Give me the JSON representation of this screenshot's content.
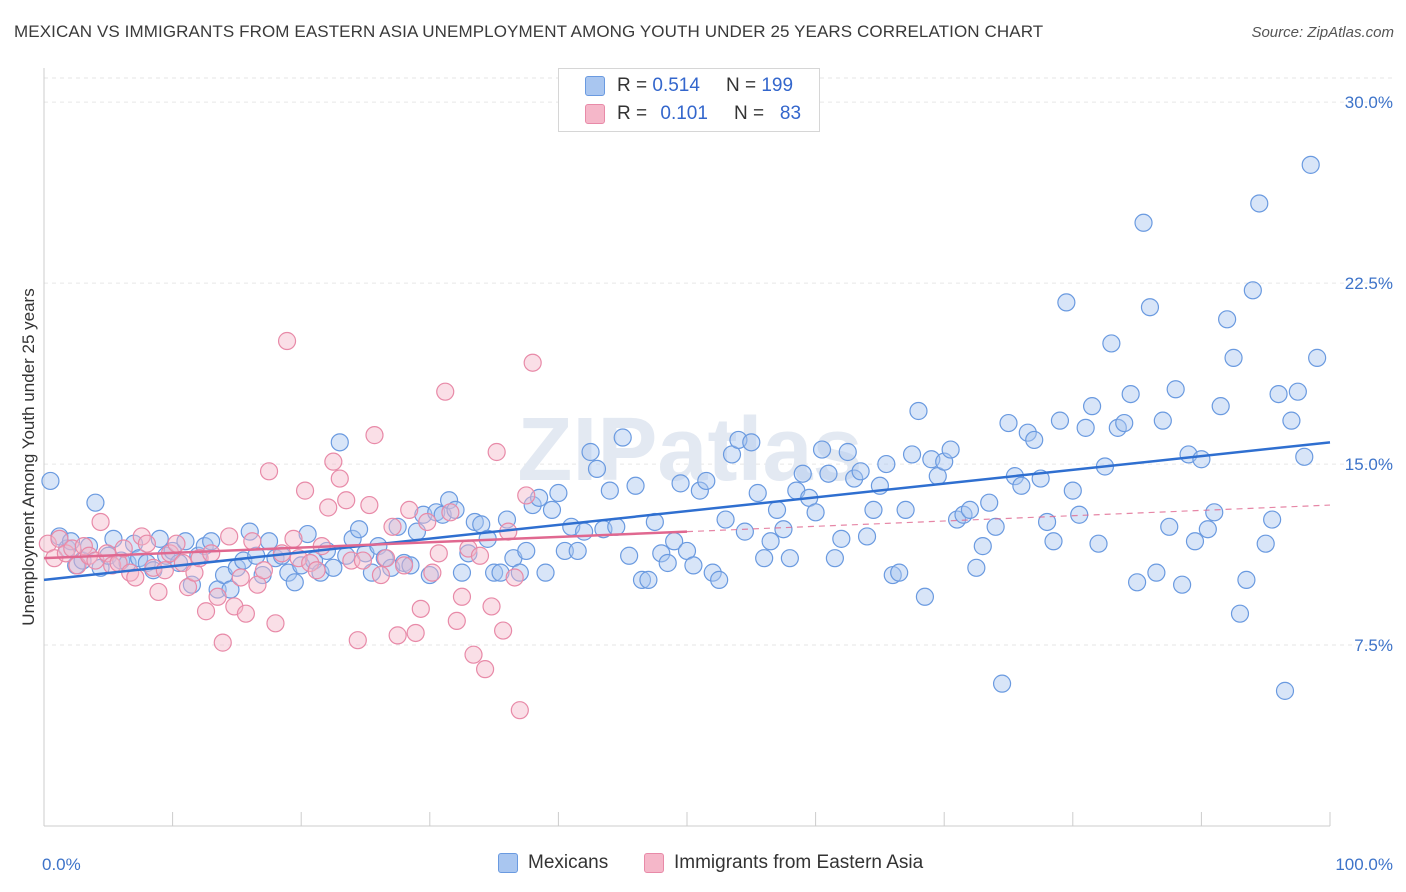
{
  "title": "MEXICAN VS IMMIGRANTS FROM EASTERN ASIA UNEMPLOYMENT AMONG YOUTH UNDER 25 YEARS CORRELATION CHART",
  "source": "Source: ZipAtlas.com",
  "watermark": "ZIPatlas",
  "legend_stats": [
    {
      "r_label": "R =",
      "r_value": "0.514",
      "n_label": "N =",
      "n_value": "199",
      "color": "#a9c6f0"
    },
    {
      "r_label": "R =",
      "r_value": "0.101",
      "n_label": "N =",
      "n_value": "83",
      "color": "#f5b7c9"
    }
  ],
  "chart_data": {
    "type": "scatter",
    "title": "MEXICAN VS IMMIGRANTS FROM EASTERN ASIA UNEMPLOYMENT AMONG YOUTH UNDER 25 YEARS CORRELATION CHART",
    "ylabel": "Unemployment Among Youth under 25 years",
    "xlim": [
      0,
      100
    ],
    "ylim": [
      0,
      31
    ],
    "x_tick_labels": [
      "0.0%",
      "100.0%"
    ],
    "y_ticks": [
      7.5,
      15.0,
      22.5,
      30.0
    ],
    "y_tick_labels": [
      "7.5%",
      "15.0%",
      "22.5%",
      "30.0%"
    ],
    "grid": true,
    "legend_position": "bottom",
    "series": [
      {
        "name": "Mexicans",
        "color": "#6a9ae0",
        "fill": "#a9c6f0",
        "trend": {
          "x": [
            0,
            100
          ],
          "y": [
            10.2,
            15.9
          ],
          "style": "solid",
          "color": "#2f6fd0"
        },
        "points": [
          [
            0.5,
            14.3
          ],
          [
            1.2,
            12.0
          ],
          [
            1.8,
            11.5
          ],
          [
            2.1,
            11.8
          ],
          [
            2.5,
            10.8
          ],
          [
            3.0,
            11.0
          ],
          [
            3.5,
            11.6
          ],
          [
            4.0,
            13.4
          ],
          [
            4.4,
            10.7
          ],
          [
            5.0,
            11.2
          ],
          [
            5.4,
            11.9
          ],
          [
            6.0,
            11.0
          ],
          [
            6.5,
            10.9
          ],
          [
            7.0,
            11.7
          ],
          [
            7.4,
            11.1
          ],
          [
            8.0,
            10.9
          ],
          [
            8.5,
            10.6
          ],
          [
            9.0,
            11.9
          ],
          [
            9.5,
            11.2
          ],
          [
            10.0,
            11.4
          ],
          [
            10.5,
            10.9
          ],
          [
            11.0,
            11.8
          ],
          [
            11.5,
            10.0
          ],
          [
            12.0,
            11.2
          ],
          [
            12.5,
            11.6
          ],
          [
            13.0,
            11.8
          ],
          [
            13.5,
            9.8
          ],
          [
            14.0,
            10.4
          ],
          [
            14.5,
            9.8
          ],
          [
            15.0,
            10.7
          ],
          [
            15.5,
            11.0
          ],
          [
            16.0,
            12.2
          ],
          [
            16.5,
            11.2
          ],
          [
            17.0,
            10.4
          ],
          [
            17.5,
            11.8
          ],
          [
            18.0,
            11.1
          ],
          [
            18.5,
            11.2
          ],
          [
            19.0,
            10.5
          ],
          [
            19.5,
            10.1
          ],
          [
            20.0,
            10.8
          ],
          [
            20.5,
            12.1
          ],
          [
            21.0,
            11.0
          ],
          [
            21.5,
            10.5
          ],
          [
            22.0,
            11.4
          ],
          [
            22.5,
            10.7
          ],
          [
            23.0,
            15.9
          ],
          [
            23.5,
            11.2
          ],
          [
            24.0,
            11.9
          ],
          [
            24.5,
            12.3
          ],
          [
            25.0,
            11.3
          ],
          [
            25.5,
            10.5
          ],
          [
            26.0,
            11.6
          ],
          [
            26.5,
            11.1
          ],
          [
            27.0,
            10.7
          ],
          [
            27.5,
            12.4
          ],
          [
            28.0,
            10.9
          ],
          [
            28.5,
            10.8
          ],
          [
            29.0,
            12.2
          ],
          [
            29.5,
            12.9
          ],
          [
            30.0,
            10.4
          ],
          [
            30.5,
            13.0
          ],
          [
            31.0,
            12.9
          ],
          [
            31.5,
            13.5
          ],
          [
            32.0,
            13.1
          ],
          [
            32.5,
            10.5
          ],
          [
            33.0,
            11.3
          ],
          [
            33.5,
            12.6
          ],
          [
            34.0,
            12.5
          ],
          [
            34.5,
            11.9
          ],
          [
            35.0,
            10.5
          ],
          [
            35.5,
            10.5
          ],
          [
            36.0,
            12.7
          ],
          [
            36.5,
            11.1
          ],
          [
            37.0,
            10.5
          ],
          [
            37.5,
            11.4
          ],
          [
            38.0,
            13.3
          ],
          [
            38.5,
            13.6
          ],
          [
            39.0,
            10.5
          ],
          [
            39.5,
            13.1
          ],
          [
            40.0,
            13.8
          ],
          [
            40.5,
            11.4
          ],
          [
            41.0,
            12.4
          ],
          [
            41.5,
            11.4
          ],
          [
            42.0,
            12.2
          ],
          [
            42.5,
            15.5
          ],
          [
            43.0,
            14.8
          ],
          [
            43.5,
            12.3
          ],
          [
            44.0,
            13.9
          ],
          [
            44.5,
            12.4
          ],
          [
            45.0,
            16.1
          ],
          [
            45.5,
            11.2
          ],
          [
            46.0,
            14.1
          ],
          [
            46.5,
            10.2
          ],
          [
            47.0,
            10.2
          ],
          [
            47.5,
            12.6
          ],
          [
            48.0,
            11.3
          ],
          [
            48.5,
            10.9
          ],
          [
            49.0,
            11.8
          ],
          [
            49.5,
            14.2
          ],
          [
            50.0,
            11.4
          ],
          [
            50.5,
            10.8
          ],
          [
            51.0,
            13.9
          ],
          [
            51.5,
            14.3
          ],
          [
            52.0,
            10.5
          ],
          [
            52.5,
            10.2
          ],
          [
            53.0,
            12.7
          ],
          [
            53.5,
            15.4
          ],
          [
            54.0,
            16.0
          ],
          [
            54.5,
            12.2
          ],
          [
            55.0,
            15.9
          ],
          [
            55.5,
            13.8
          ],
          [
            56.0,
            11.1
          ],
          [
            56.5,
            11.8
          ],
          [
            57.0,
            13.1
          ],
          [
            57.5,
            12.3
          ],
          [
            58.0,
            11.1
          ],
          [
            58.5,
            13.9
          ],
          [
            59.0,
            14.6
          ],
          [
            59.5,
            13.6
          ],
          [
            60.0,
            13.0
          ],
          [
            60.5,
            15.6
          ],
          [
            61.0,
            14.6
          ],
          [
            61.5,
            11.1
          ],
          [
            62.0,
            11.9
          ],
          [
            62.5,
            15.5
          ],
          [
            63.0,
            14.4
          ],
          [
            63.5,
            14.7
          ],
          [
            64.0,
            12.0
          ],
          [
            64.5,
            13.1
          ],
          [
            65.0,
            14.1
          ],
          [
            65.5,
            15.0
          ],
          [
            66.0,
            10.4
          ],
          [
            66.5,
            10.5
          ],
          [
            67.0,
            13.1
          ],
          [
            67.5,
            15.4
          ],
          [
            68.0,
            17.2
          ],
          [
            68.5,
            9.5
          ],
          [
            69.0,
            15.2
          ],
          [
            69.5,
            14.5
          ],
          [
            70.0,
            15.1
          ],
          [
            70.5,
            15.6
          ],
          [
            71.0,
            12.7
          ],
          [
            71.5,
            12.9
          ],
          [
            72.0,
            13.1
          ],
          [
            72.5,
            10.7
          ],
          [
            73.0,
            11.6
          ],
          [
            73.5,
            13.4
          ],
          [
            74.0,
            12.4
          ],
          [
            74.5,
            5.9
          ],
          [
            75.0,
            16.7
          ],
          [
            75.5,
            14.5
          ],
          [
            76.0,
            14.1
          ],
          [
            76.5,
            16.3
          ],
          [
            77.0,
            16.0
          ],
          [
            77.5,
            14.4
          ],
          [
            78.0,
            12.6
          ],
          [
            78.5,
            11.8
          ],
          [
            79.0,
            16.8
          ],
          [
            79.5,
            21.7
          ],
          [
            80.0,
            13.9
          ],
          [
            80.5,
            12.9
          ],
          [
            81.0,
            16.5
          ],
          [
            81.5,
            17.4
          ],
          [
            82.0,
            11.7
          ],
          [
            82.5,
            14.9
          ],
          [
            83.0,
            20.0
          ],
          [
            83.5,
            16.5
          ],
          [
            84.0,
            16.7
          ],
          [
            84.5,
            17.9
          ],
          [
            85.0,
            10.1
          ],
          [
            85.5,
            25.0
          ],
          [
            86.0,
            21.5
          ],
          [
            86.5,
            10.5
          ],
          [
            87.0,
            16.8
          ],
          [
            87.5,
            12.4
          ],
          [
            88.0,
            18.1
          ],
          [
            88.5,
            10.0
          ],
          [
            89.0,
            15.4
          ],
          [
            89.5,
            11.8
          ],
          [
            90.0,
            15.2
          ],
          [
            90.5,
            12.3
          ],
          [
            91.0,
            13.0
          ],
          [
            91.5,
            17.4
          ],
          [
            92.0,
            21.0
          ],
          [
            92.5,
            19.4
          ],
          [
            93.0,
            8.8
          ],
          [
            93.5,
            10.2
          ],
          [
            94.0,
            22.2
          ],
          [
            94.5,
            25.8
          ],
          [
            95.0,
            11.7
          ],
          [
            95.5,
            12.7
          ],
          [
            96.0,
            17.9
          ],
          [
            96.5,
            5.6
          ],
          [
            97.0,
            16.8
          ],
          [
            97.5,
            18.0
          ],
          [
            98.0,
            15.3
          ],
          [
            98.5,
            27.4
          ],
          [
            99.0,
            19.4
          ]
        ]
      },
      {
        "name": "Immigrants from Eastern Asia",
        "color": "#e88aa8",
        "fill": "#f5b7c9",
        "trend": {
          "x": [
            0,
            100
          ],
          "y": [
            11.1,
            13.3
          ],
          "style": "solid-to-dashed",
          "solid_until": 50,
          "color": "#e06890"
        },
        "points": [
          [
            0.3,
            11.7
          ],
          [
            0.8,
            11.1
          ],
          [
            1.2,
            11.9
          ],
          [
            1.7,
            11.3
          ],
          [
            2.2,
            11.5
          ],
          [
            2.6,
            10.8
          ],
          [
            3.1,
            11.6
          ],
          [
            3.5,
            11.2
          ],
          [
            4.0,
            11.0
          ],
          [
            4.4,
            12.6
          ],
          [
            4.9,
            11.3
          ],
          [
            5.3,
            10.8
          ],
          [
            5.8,
            10.9
          ],
          [
            6.2,
            11.5
          ],
          [
            6.7,
            10.5
          ],
          [
            7.1,
            10.3
          ],
          [
            7.6,
            12.0
          ],
          [
            8.0,
            11.7
          ],
          [
            8.5,
            10.7
          ],
          [
            8.9,
            9.7
          ],
          [
            9.4,
            10.6
          ],
          [
            9.8,
            11.3
          ],
          [
            10.3,
            11.7
          ],
          [
            10.8,
            10.9
          ],
          [
            11.2,
            9.9
          ],
          [
            11.7,
            10.5
          ],
          [
            12.1,
            11.1
          ],
          [
            12.6,
            8.9
          ],
          [
            13.0,
            11.3
          ],
          [
            13.5,
            9.5
          ],
          [
            13.9,
            7.6
          ],
          [
            14.4,
            12.0
          ],
          [
            14.8,
            9.1
          ],
          [
            15.3,
            10.3
          ],
          [
            15.7,
            8.8
          ],
          [
            16.2,
            11.8
          ],
          [
            16.6,
            10.0
          ],
          [
            17.1,
            10.6
          ],
          [
            17.5,
            14.7
          ],
          [
            18.0,
            8.4
          ],
          [
            18.5,
            11.3
          ],
          [
            18.9,
            20.1
          ],
          [
            19.4,
            11.9
          ],
          [
            19.8,
            11.1
          ],
          [
            20.3,
            13.9
          ],
          [
            20.7,
            10.9
          ],
          [
            21.2,
            10.6
          ],
          [
            21.6,
            11.6
          ],
          [
            22.1,
            13.2
          ],
          [
            22.5,
            15.1
          ],
          [
            23.0,
            14.4
          ],
          [
            23.5,
            13.5
          ],
          [
            23.9,
            11.0
          ],
          [
            24.4,
            7.7
          ],
          [
            24.8,
            11.0
          ],
          [
            25.3,
            13.3
          ],
          [
            25.7,
            16.2
          ],
          [
            26.2,
            10.4
          ],
          [
            26.6,
            11.1
          ],
          [
            27.1,
            12.4
          ],
          [
            27.5,
            7.9
          ],
          [
            28.0,
            10.8
          ],
          [
            28.4,
            13.1
          ],
          [
            28.9,
            8.0
          ],
          [
            29.3,
            9.0
          ],
          [
            29.8,
            12.6
          ],
          [
            30.2,
            10.5
          ],
          [
            30.7,
            11.3
          ],
          [
            31.2,
            18.0
          ],
          [
            31.6,
            13.0
          ],
          [
            32.1,
            8.5
          ],
          [
            32.5,
            9.5
          ],
          [
            33.0,
            11.5
          ],
          [
            33.4,
            7.1
          ],
          [
            33.9,
            11.2
          ],
          [
            34.3,
            6.5
          ],
          [
            34.8,
            9.1
          ],
          [
            35.2,
            15.5
          ],
          [
            35.7,
            8.1
          ],
          [
            36.1,
            12.2
          ],
          [
            36.6,
            10.3
          ],
          [
            37.0,
            4.8
          ],
          [
            37.5,
            13.7
          ],
          [
            38.0,
            19.2
          ]
        ]
      }
    ]
  },
  "bottom_legend": [
    {
      "label": "Mexicans",
      "color": "#a9c6f0"
    },
    {
      "label": "Immigrants from Eastern Asia",
      "color": "#f5b7c9"
    }
  ]
}
